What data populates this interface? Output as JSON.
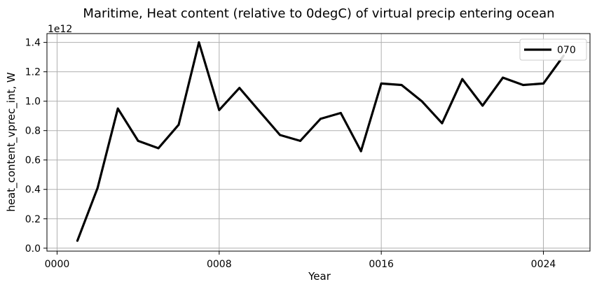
{
  "chart_data": {
    "type": "line",
    "title": "Maritime, Heat content (relative to 0degC) of virtual precip entering ocean",
    "xlabel": "Year",
    "ylabel": "heat_content_vprec_int, W",
    "y_offset_label": "1e12",
    "y_multiplier": 1000000000000.0,
    "xlim": [
      -0.5,
      26.3
    ],
    "ylim": [
      -0.02,
      1.46
    ],
    "x_ticks": [
      0,
      8,
      16,
      24
    ],
    "x_tick_labels": [
      "0000",
      "0008",
      "0016",
      "0024"
    ],
    "y_ticks": [
      0.0,
      0.2,
      0.4,
      0.6,
      0.8,
      1.0,
      1.2,
      1.4
    ],
    "y_tick_labels": [
      "0.0",
      "0.2",
      "0.4",
      "0.6",
      "0.8",
      "1.0",
      "1.2",
      "1.4"
    ],
    "grid": true,
    "legend_position": "top-right",
    "series": [
      {
        "name": "070",
        "color": "#000000",
        "x": [
          1,
          2,
          3,
          4,
          5,
          6,
          7,
          8,
          9,
          10,
          11,
          12,
          13,
          14,
          15,
          16,
          17,
          18,
          19,
          20,
          21,
          22,
          23,
          24,
          25
        ],
        "values": [
          0.05,
          0.41,
          0.95,
          0.73,
          0.68,
          0.84,
          1.4,
          0.94,
          1.09,
          0.93,
          0.77,
          0.73,
          0.88,
          0.92,
          0.66,
          1.12,
          1.11,
          1.0,
          0.85,
          1.15,
          0.97,
          1.16,
          1.11,
          1.12,
          1.31
        ]
      }
    ]
  }
}
